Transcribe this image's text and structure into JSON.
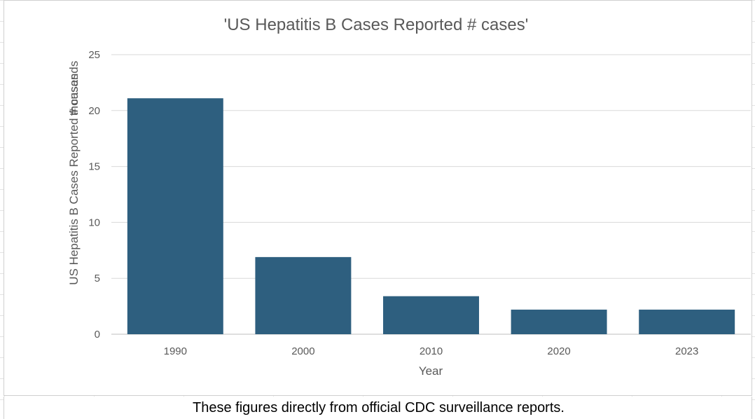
{
  "chart_data": {
    "type": "bar",
    "title": "'US Hepatitis B Cases Reported # cases'",
    "xlabel": "Year",
    "ylabel": "US Hepatitis B Cases Reported # cases",
    "ylabel_overlap": "thousands",
    "categories": [
      "1990",
      "2000",
      "2010",
      "2020",
      "2023"
    ],
    "values": [
      21.1,
      6.9,
      3.4,
      2.2,
      2.2
    ],
    "ylim": [
      0,
      25
    ],
    "yticks": [
      0,
      5,
      10,
      15,
      20,
      25
    ],
    "grid": true,
    "legend": "none",
    "bar_color": "#2e5f7f"
  },
  "note": {
    "text": "These figures directly from official CDC surveillance reports."
  }
}
